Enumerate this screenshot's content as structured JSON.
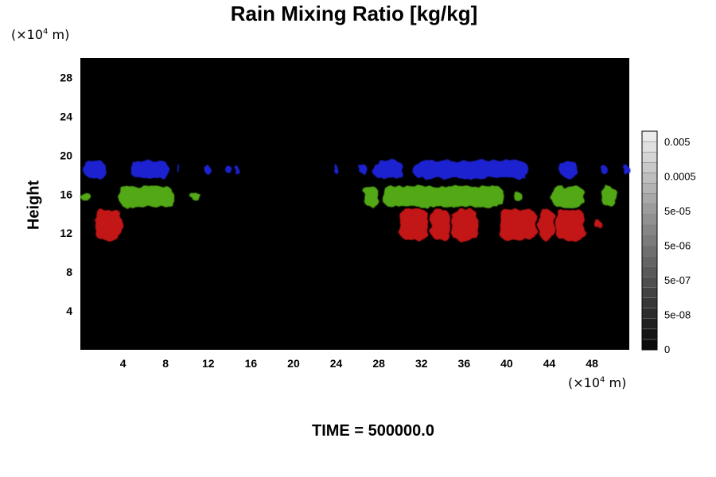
{
  "chart_data": {
    "type": "heatmap",
    "title": "Rain Mixing Ratio [kg/kg]",
    "ylabel": "Height",
    "xunits": {
      "prefix": "(×10",
      "exp": "4",
      "suffix": " m)"
    },
    "yunits": {
      "prefix": "(×10",
      "exp": "4",
      "suffix": " m)"
    },
    "xlim": [
      0,
      51.5
    ],
    "ylim": [
      0,
      30
    ],
    "xticks": [
      4,
      8,
      12,
      16,
      20,
      24,
      28,
      32,
      36,
      40,
      44,
      48
    ],
    "yticks": [
      4,
      8,
      12,
      16,
      20,
      24,
      28
    ],
    "background_color": "#000000",
    "colorbar": {
      "labels": [
        "0.005",
        "0.0005",
        "5e-05",
        "5e-06",
        "5e-07",
        "5e-08",
        "0"
      ],
      "levels": 21
    },
    "features": [
      {
        "color": "#1c22d0",
        "level": "upper",
        "segments": [
          [
            0.3,
            2.4
          ],
          [
            4.7,
            8.3
          ],
          [
            9.2,
            9.4
          ],
          [
            11.6,
            12.2
          ],
          [
            13.7,
            14.1
          ],
          [
            14.4,
            14.8
          ],
          [
            23.8,
            24.2
          ],
          [
            26.1,
            27.0
          ],
          [
            27.4,
            30.3
          ],
          [
            31.2,
            42.0
          ],
          [
            45.0,
            46.7
          ],
          [
            48.8,
            49.4
          ],
          [
            50.8,
            51.5
          ]
        ],
        "y": [
          17.5,
          19.6
        ]
      },
      {
        "color": "#52a812",
        "level": "middle",
        "segments": [
          [
            0.0,
            1.0
          ],
          [
            3.6,
            8.7
          ],
          [
            10.4,
            11.3
          ],
          [
            26.6,
            28.0
          ],
          [
            28.4,
            39.7
          ],
          [
            40.6,
            41.5
          ],
          [
            44.2,
            47.3
          ],
          [
            48.9,
            50.3
          ]
        ],
        "y": [
          14.5,
          17.0
        ]
      },
      {
        "color": "#c31212",
        "level": "lower",
        "segments": [
          [
            1.4,
            3.9
          ],
          [
            30.0,
            32.7
          ],
          [
            32.9,
            34.7
          ],
          [
            34.8,
            37.3
          ],
          [
            39.3,
            42.8
          ],
          [
            43.0,
            44.5
          ],
          [
            44.6,
            47.3
          ],
          [
            48.3,
            48.9
          ]
        ],
        "y": [
          11.0,
          14.7
        ]
      }
    ]
  },
  "time": "TIME = 500000.0"
}
